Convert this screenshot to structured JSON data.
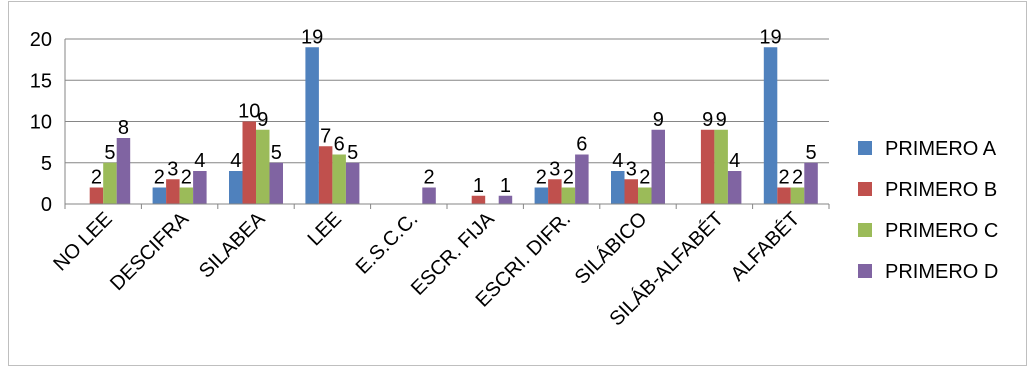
{
  "chart_data": {
    "type": "bar",
    "categories": [
      "NO LEE",
      "DESCIFRA",
      "SILABEA",
      "LEE",
      "E.S.C.C.",
      "ESCR. FIJA",
      "ESCRI. DIFR.",
      "SILÁBICO",
      "SILÁB-ALFABÉT",
      "ALFABÉT"
    ],
    "series": [
      {
        "name": "PRIMERO A",
        "color": "#4f81bd",
        "values": [
          0,
          2,
          4,
          19,
          0,
          0,
          2,
          4,
          0,
          19
        ]
      },
      {
        "name": "PRIMERO B",
        "color": "#c0504d",
        "values": [
          2,
          3,
          10,
          7,
          0,
          1,
          3,
          3,
          9,
          2
        ]
      },
      {
        "name": "PRIMERO C",
        "color": "#9bbb59",
        "values": [
          5,
          2,
          9,
          6,
          0,
          0,
          2,
          2,
          9,
          2
        ]
      },
      {
        "name": "PRIMERO D",
        "color": "#8064a2",
        "values": [
          8,
          4,
          5,
          5,
          2,
          1,
          6,
          9,
          4,
          5
        ]
      }
    ],
    "labels": [
      [
        "",
        "2",
        "4",
        "19",
        "",
        "",
        "2",
        "4",
        "",
        "19"
      ],
      [
        "2",
        "3",
        "10",
        "7",
        "",
        "1",
        "3",
        "3",
        "9",
        "2"
      ],
      [
        "5",
        "2",
        "9",
        "6",
        "",
        "",
        "2",
        "2",
        "9",
        "2"
      ],
      [
        "8",
        "4",
        "5",
        "5",
        "2",
        "1",
        "6",
        "9",
        "4",
        "5"
      ]
    ],
    "ylim": [
      0,
      20
    ],
    "yticks": [
      "0",
      "5",
      "10",
      "15",
      "20"
    ],
    "grid": true,
    "legend_position": "right"
  }
}
